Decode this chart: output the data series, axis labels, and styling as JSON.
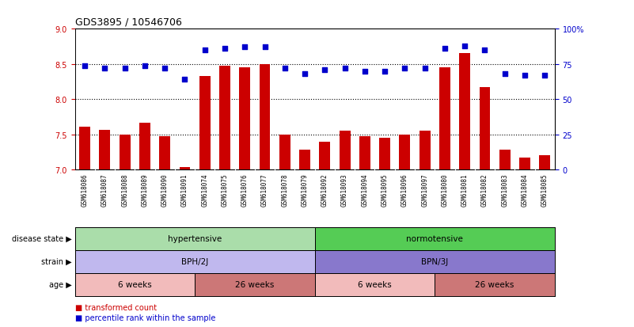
{
  "title": "GDS3895 / 10546706",
  "samples": [
    "GSM618086",
    "GSM618087",
    "GSM618088",
    "GSM618089",
    "GSM618090",
    "GSM618091",
    "GSM618074",
    "GSM618075",
    "GSM618076",
    "GSM618077",
    "GSM618078",
    "GSM618079",
    "GSM618092",
    "GSM618093",
    "GSM618094",
    "GSM618095",
    "GSM618096",
    "GSM618097",
    "GSM618080",
    "GSM618081",
    "GSM618082",
    "GSM618083",
    "GSM618084",
    "GSM618085"
  ],
  "transformed_count": [
    7.61,
    7.56,
    7.5,
    7.67,
    7.47,
    7.04,
    8.33,
    8.47,
    8.45,
    8.5,
    7.5,
    7.28,
    7.4,
    7.55,
    7.47,
    7.45,
    7.5,
    7.55,
    8.45,
    8.65,
    8.17,
    7.28,
    7.17,
    7.2
  ],
  "percentile_rank": [
    74,
    72,
    72,
    74,
    72,
    64,
    85,
    86,
    87,
    87,
    72,
    68,
    71,
    72,
    70,
    70,
    72,
    72,
    86,
    88,
    85,
    68,
    67,
    67
  ],
  "bar_color": "#cc0000",
  "dot_color": "#0000cc",
  "ylim_left": [
    7.0,
    9.0
  ],
  "ylim_right": [
    0,
    100
  ],
  "yticks_left": [
    7.0,
    7.5,
    8.0,
    8.5,
    9.0
  ],
  "yticks_right": [
    0,
    25,
    50,
    75,
    100
  ],
  "ytick_labels_right": [
    "0",
    "25",
    "50",
    "75",
    "100%"
  ],
  "hlines": [
    7.5,
    8.0,
    8.5
  ],
  "disease_groups": [
    {
      "label": "hypertensive",
      "start": 0,
      "end": 11,
      "color": "#aaddaa"
    },
    {
      "label": "normotensive",
      "start": 12,
      "end": 23,
      "color": "#55cc55"
    }
  ],
  "strain_groups": [
    {
      "label": "BPH/2J",
      "start": 0,
      "end": 11,
      "color": "#c0b8ee"
    },
    {
      "label": "BPN/3J",
      "start": 12,
      "end": 23,
      "color": "#8878cc"
    }
  ],
  "age_groups": [
    {
      "label": "6 weeks",
      "start": 0,
      "end": 5,
      "color": "#f2bbbb"
    },
    {
      "label": "26 weeks",
      "start": 6,
      "end": 11,
      "color": "#cc7777"
    },
    {
      "label": "6 weeks",
      "start": 12,
      "end": 17,
      "color": "#f2bbbb"
    },
    {
      "label": "26 weeks",
      "start": 18,
      "end": 23,
      "color": "#cc7777"
    }
  ],
  "row_labels": [
    "disease state",
    "strain",
    "age"
  ],
  "legend_items": [
    {
      "label": "transformed count",
      "color": "#cc0000"
    },
    {
      "label": "percentile rank within the sample",
      "color": "#0000cc"
    }
  ],
  "bg_color": "#ffffff",
  "xticklabel_bg": "#cccccc"
}
